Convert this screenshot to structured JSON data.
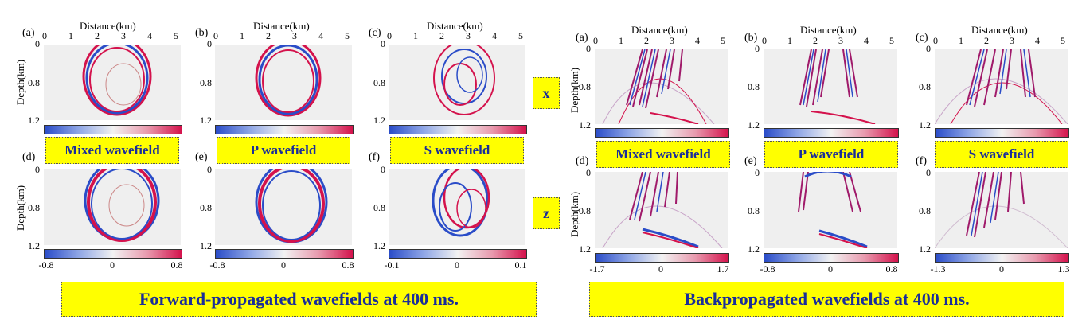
{
  "distance_label": "Distance(km)",
  "depth_label": "Depth(km)",
  "x_ticks": [
    "0",
    "1",
    "2",
    "3",
    "4",
    "5"
  ],
  "y_ticks": [
    "0",
    "0.8",
    "1.2"
  ],
  "colorbar_min_cut": "-",
  "forward": {
    "caption": "Forward-propagated wavefields at 400 ms.",
    "top_row": [
      {
        "label": "(a)",
        "name": "Mixed wavefield"
      },
      {
        "label": "(b)",
        "name": "P wavefield"
      },
      {
        "label": "(c)",
        "name": "S wavefield"
      }
    ],
    "bottom_row": [
      {
        "label": "(d)",
        "cbar": [
          "-0.8",
          "0",
          "0.8"
        ]
      },
      {
        "label": "(e)",
        "cbar": [
          "-0.8",
          "0",
          "0.8"
        ]
      },
      {
        "label": "(f)",
        "cbar": [
          "-0.1",
          "0",
          "0.1"
        ]
      }
    ]
  },
  "components": {
    "x": "x",
    "z": "z"
  },
  "backward": {
    "caption": "Backpropagated wavefields at 400 ms.",
    "top_row": [
      {
        "label": "(a)",
        "name": "Mixed wavefield"
      },
      {
        "label": "(b)",
        "name": "P wavefield"
      },
      {
        "label": "(c)",
        "name": "S wavefield"
      }
    ],
    "bottom_row": [
      {
        "label": "(d)",
        "cbar": [
          "-1.7",
          "0",
          "1.7"
        ]
      },
      {
        "label": "(e)",
        "cbar": [
          "-0.8",
          "0",
          "0.8"
        ]
      },
      {
        "label": "(f)",
        "cbar": [
          "-1.3",
          "0",
          "1.3"
        ]
      }
    ]
  }
}
